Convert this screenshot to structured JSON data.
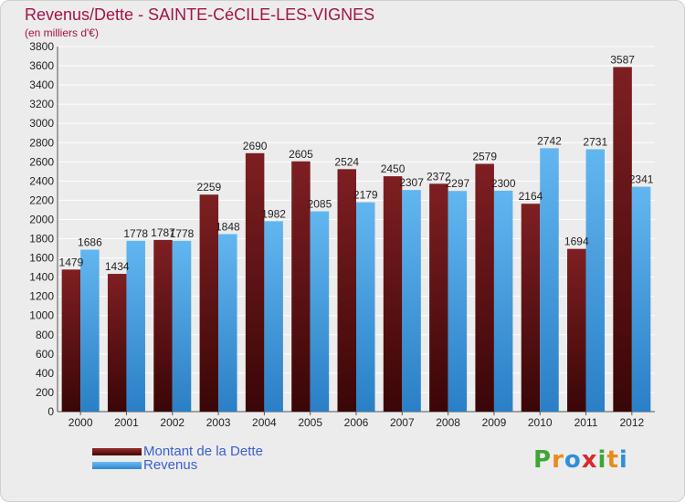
{
  "chart_data": {
    "type": "bar",
    "title": "Revenus/Dette - SAINTE-CéCILE-LES-VIGNES",
    "subtitle": "(en milliers d'€)",
    "categories": [
      "2000",
      "2001",
      "2002",
      "2003",
      "2004",
      "2005",
      "2006",
      "2007",
      "2008",
      "2009",
      "2010",
      "2011",
      "2012"
    ],
    "series": [
      {
        "name": "Montant de la Dette",
        "color": "#7a1a1a",
        "values": [
          1479,
          1434,
          1787,
          2259,
          2690,
          2605,
          2524,
          2450,
          2372,
          2579,
          2164,
          1694,
          3587
        ],
        "labels": [
          "1479",
          "1434",
          "1787",
          "2259",
          "2690",
          "2605",
          "2524",
          "2450",
          "2372",
          "2579",
          "2164",
          "1694",
          "3587"
        ]
      },
      {
        "name": "Revenus",
        "color": "#4aa3e6",
        "values": [
          1686,
          1778,
          1778,
          1848,
          1982,
          2085,
          2179,
          2307,
          2297,
          2300,
          2742,
          2731,
          2341
        ],
        "labels": [
          "1686",
          "1778",
          "1778",
          "1848",
          "1982",
          "2085",
          "2179",
          "2307",
          "2297",
          "2300",
          "2742",
          "2731",
          "2341"
        ]
      }
    ],
    "ylim": [
      0,
      3800
    ],
    "yticks": [
      0,
      200,
      400,
      600,
      800,
      1000,
      1200,
      1400,
      1600,
      1800,
      2000,
      2200,
      2400,
      2600,
      2800,
      3000,
      3200,
      3400,
      3600,
      3800
    ],
    "grid": true,
    "legend_position": "bottom-left"
  },
  "logo": {
    "letters": [
      "P",
      "r",
      "o",
      "x",
      "i",
      "t",
      "i"
    ],
    "colors": [
      "#3fa535",
      "#e98b1c",
      "#2e8fd6",
      "#d9282f",
      "#3fa535",
      "#e98b1c",
      "#2e8fd6"
    ]
  }
}
